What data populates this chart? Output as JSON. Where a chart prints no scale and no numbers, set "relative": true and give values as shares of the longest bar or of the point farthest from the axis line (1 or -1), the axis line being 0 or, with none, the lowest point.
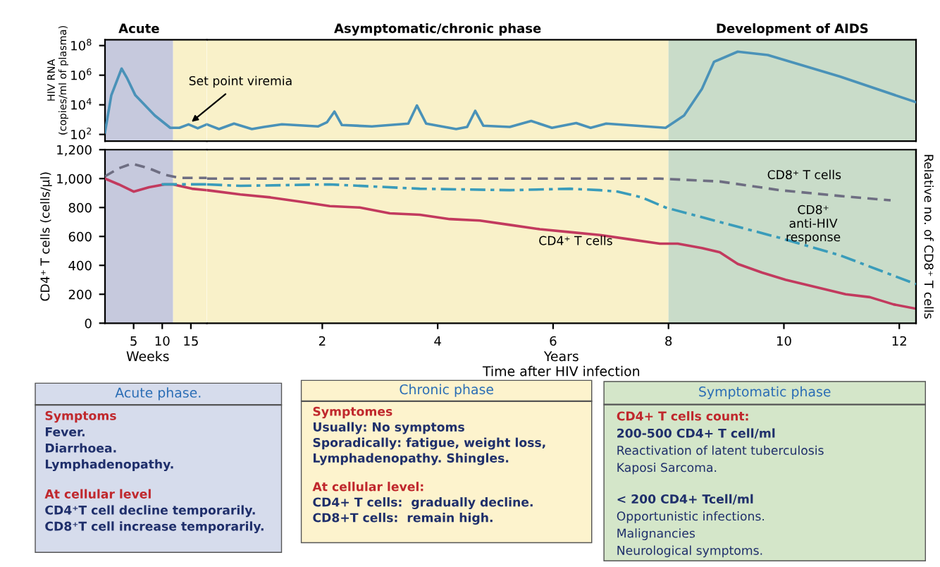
{
  "chart_data": [
    {
      "type": "line",
      "ylabel": "HIV RNA\n(copies/ml of plasma)",
      "log": "y",
      "tick_labels": "y",
      "grid": false,
      "legend": false,
      "marker": "none",
      "xlim": [
        0,
        17.8
      ],
      "ylim": [
        35,
        250000000
      ],
      "yticks": [
        {
          "value": 100,
          "label": "10$^{2}$"
        },
        {
          "value": 10000,
          "label": "10$^{4}$"
        },
        {
          "value": 1000000,
          "label": "10$^{6}$"
        },
        {
          "value": 100000000,
          "label": "10$^{8}$"
        }
      ],
      "bands": [
        {
          "axis": "x",
          "from": 0,
          "to": 11.9,
          "label": "Acute",
          "color": "#c6c9dd"
        },
        {
          "axis": "x",
          "from": 11.9,
          "to": 17.8,
          "color": "#f9f1c9"
        }
      ],
      "annotations": [
        {
          "text": "Set point viremia",
          "x": 14.6,
          "y": 480
        }
      ],
      "series": [
        {
          "color": "#4a92b8",
          "line_style": "solid",
          "x": [
            0,
            1.1,
            2.9,
            3.9,
            5.3,
            8.7,
            11.4,
            13.0,
            14.6,
            16.2,
            17.8
          ],
          "values": [
            140,
            44000,
            2800000,
            590000,
            44000,
            1900,
            280,
            280,
            480,
            260,
            480
          ]
        }
      ]
    },
    {
      "type": "line",
      "log": "y",
      "tick_labels": false,
      "grid": false,
      "legend": false,
      "marker": "none",
      "xlim": [
        0,
        12.29
      ],
      "ylim": [
        35,
        250000000
      ],
      "bands": [
        {
          "axis": "x",
          "from": 0,
          "to": 8.0,
          "label": "Asymptomatic/chronic phase",
          "color": "#f9f1c9"
        },
        {
          "axis": "x",
          "from": 8.0,
          "to": 12.29,
          "label": "Development of AIDS",
          "color": "#c9dcc9"
        }
      ],
      "series": [
        {
          "color": "#4a92b8",
          "line_style": "solid",
          "x": [
            0.0,
            0.21,
            0.47,
            0.78,
            0.99,
            1.3,
            1.93,
            2.08,
            2.21,
            2.34,
            2.86,
            3.49,
            3.64,
            3.8,
            4.32,
            4.51,
            4.65,
            4.79,
            5.25,
            5.62,
            5.98,
            6.4,
            6.65,
            6.92,
            7.44,
            7.95,
            8.27,
            8.58,
            8.79,
            9.2,
            9.72,
            10.97,
            12.29
          ],
          "values": [
            480,
            230,
            540,
            230,
            320,
            480,
            350,
            660,
            3500,
            430,
            350,
            540,
            9000,
            540,
            230,
            320,
            3900,
            390,
            320,
            810,
            280,
            590,
            280,
            540,
            390,
            280,
            1900,
            120000,
            8100000,
            39000000,
            23000000,
            810000,
            15000
          ]
        }
      ]
    },
    {
      "type": "line",
      "ylabel": "CD4⁺ T cells (cells/µl)",
      "grid": false,
      "legend": false,
      "marker": "none",
      "xlim": [
        0,
        17.8
      ],
      "ylim": [
        0,
        1200
      ],
      "xticks": [
        5,
        10,
        15
      ],
      "yticks": [
        0,
        200,
        400,
        600,
        800,
        {
          "value": 1000,
          "label": "1,000"
        },
        {
          "value": 1200,
          "label": "1,200"
        }
      ],
      "bands": [
        {
          "axis": "x",
          "from": 0,
          "to": 11.9,
          "color": "#c6c9dd"
        },
        {
          "axis": "x",
          "from": 11.9,
          "to": 17.8,
          "color": "#f9f1c9"
        }
      ],
      "annotations": [
        "Weeks"
      ],
      "series": [
        {
          "color": "#c23a5e",
          "line_style": "solid",
          "x": [
            0,
            2.4,
            5,
            7.7,
            10.4,
            11.9,
            15.2,
            17.8
          ],
          "values": [
            1000,
            960,
            910,
            940,
            960,
            960,
            930,
            920
          ]
        }
      ]
    },
    {
      "type": "line",
      "xlabel": "Time after HIV infection",
      "tick_labels": "x",
      "grid": false,
      "legend": false,
      "marker": "none",
      "xlim": [
        0,
        12.29
      ],
      "ylim": [
        0,
        1200
      ],
      "xticks": [
        2,
        4,
        6,
        8,
        10,
        12
      ],
      "bands": [
        {
          "axis": "x",
          "from": 0,
          "to": 8.0,
          "color": "#f9f1c9"
        },
        {
          "axis": "x",
          "from": 8.0,
          "to": 12.29,
          "color": "#c9dcc9"
        }
      ],
      "annotations": [
        "Years"
      ],
      "series": [
        {
          "name": "CD4⁺ T cells",
          "color": "#c23a5e",
          "line_style": "solid",
          "x": [
            0,
            0.58,
            1.1,
            1.62,
            2.13,
            2.65,
            3.17,
            3.69,
            4.21,
            4.73,
            5.25,
            5.77,
            6.29,
            6.81,
            7.33,
            7.85,
            8.16,
            8.58,
            8.89,
            9.2,
            9.62,
            10.03,
            10.55,
            11.07,
            11.49,
            11.9,
            12.29
          ],
          "values": [
            920,
            890,
            870,
            840,
            810,
            800,
            760,
            750,
            720,
            710,
            680,
            650,
            630,
            610,
            580,
            550,
            550,
            520,
            490,
            410,
            350,
            300,
            250,
            200,
            180,
            130,
            100
          ]
        }
      ]
    },
    {
      "type": "line",
      "relative": true,
      "tick_labels": false,
      "grid": false,
      "legend": false,
      "marker": "none",
      "xlim": [
        0,
        17.8
      ],
      "series": [
        {
          "color": "#6e6e82",
          "line_style": "dashed",
          "x": [
            0,
            2.4,
            4.7,
            7.7,
            10.4,
            13.0,
            17.8
          ],
          "values": [
            0.92,
            0.97,
            1,
            0.97,
            0.93,
            0.91,
            0.91
          ]
        },
        {
          "color": "#3a9cba",
          "line_style": "dashdot",
          "x": [
            9.9,
            17.8
          ],
          "values": [
            0.87,
            0.87
          ]
        }
      ]
    },
    {
      "type": "line",
      "relative": true,
      "y2label": "Relative no. of CD8⁺ T cells",
      "tick_labels": false,
      "grid": false,
      "legend": false,
      "marker": "none",
      "xlim": [
        0,
        12.29
      ],
      "series": [
        {
          "name": "CD8⁺ T cells",
          "color": "#6e6e82",
          "line_style": "dashed",
          "x": [
            0,
            1.62,
            4.73,
            7.85,
            8.89,
            9.93,
            10.97,
            11.85
          ],
          "values": [
            1,
            1,
            1,
            1,
            0.98,
            0.92,
            0.88,
            0.85
          ]
        },
        {
          "name": "CD8⁺\nanti-HIV\nresponse",
          "color": "#3a9cba",
          "line_style": "dashdot",
          "x": [
            0,
            0.58,
            2.13,
            3.69,
            5.25,
            6.29,
            6.81,
            7.12,
            7.54,
            7.95,
            8.89,
            9.93,
            10.97,
            12.29
          ],
          "values": [
            0.96,
            0.95,
            0.96,
            0.93,
            0.92,
            0.93,
            0.92,
            0.91,
            0.87,
            0.8,
            0.7,
            0.59,
            0.47,
            0.27
          ]
        }
      ]
    },
    {
      "type": "other",
      "title": "Acute phase.",
      "color": "#d6dcec",
      "annotations": [
        "Symptoms",
        "Fever.",
        "Diarrhoea.",
        "Lymphadenopathy.",
        "At cellular level",
        "CD4⁺T cell decline temporarily.",
        "CD8⁺T cell increase temporarily."
      ]
    },
    {
      "type": "other",
      "title": "Chronic phase",
      "color": "#fdf3cd",
      "annotations": [
        "Symptomes",
        "Usually: No symptoms",
        "Sporadically: fatigue, weight loss,",
        "Lymphadenopathy. Shingles.",
        "At cellular level:",
        "CD4+ T cells:  gradually decline.",
        "CD8+T cells:  remain high."
      ]
    },
    {
      "type": "other",
      "title": "Symptomatic phase",
      "color": "#d4e6c9",
      "annotations": [
        "CD4+ T cells count:",
        "200-500 CD4+ T cell/ml",
        "Reactivation of latent tuberculosis",
        "Kaposi Sarcoma.",
        "< 200 CD4+ Tcell/ml",
        "Opportunistic infections.",
        "Malignancies",
        "Neurological symptoms."
      ]
    }
  ]
}
